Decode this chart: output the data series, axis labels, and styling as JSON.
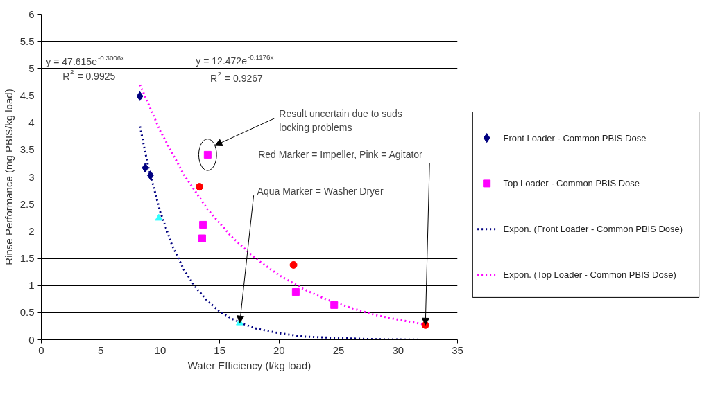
{
  "chart_data": {
    "type": "scatter",
    "xlabel": "Water Efficiency (l/kg load)",
    "ylabel": "Rinse Performance (mg PBIS/kg load)",
    "xlim": [
      0,
      35
    ],
    "xticks": [
      0,
      5,
      10,
      15,
      20,
      25,
      30,
      35
    ],
    "ylim": [
      0,
      6
    ],
    "yticks": [
      0,
      0.5,
      1,
      1.5,
      2,
      2.5,
      3,
      3.5,
      4,
      4.5,
      5,
      5.5,
      6
    ],
    "grid": "y",
    "legend": "right",
    "series": [
      {
        "name": "Front Loader - Common PBIS Dose",
        "marker": "diamond",
        "color": "#000080",
        "x": [
          8.29,
          8.74,
          9.18
        ],
        "values": [
          4.49,
          3.17,
          3.03
        ]
      },
      {
        "name": "Top Loader - Common PBIS Dose",
        "marker": "square",
        "color": "#ff00ff",
        "x": [
          13.99,
          13.6,
          13.53,
          21.4,
          24.63
        ],
        "values": [
          3.41,
          2.12,
          1.87,
          0.88,
          0.64
        ]
      },
      {
        "name": "Expon. (Front Loader - Common PBIS Dose)",
        "type": "line",
        "line_style": "dotted",
        "color": "#000080",
        "x": [
          8.3,
          9,
          10,
          11,
          12,
          13,
          14,
          15,
          16,
          17,
          18,
          20,
          22,
          25,
          28,
          32.3
        ],
        "values": [
          3.93,
          3.18,
          2.36,
          1.74,
          1.29,
          0.96,
          0.71,
          0.52,
          0.39,
          0.29,
          0.21,
          0.12,
          0.06,
          0.03,
          0.01,
          0
        ]
      },
      {
        "name": "Expon. (Top Loader - Common PBIS Dose)",
        "type": "line",
        "line_style": "dotted",
        "color": "#ff00ff",
        "x": [
          8.3,
          10,
          12,
          14,
          16,
          18,
          20,
          22,
          24,
          26,
          28,
          30,
          32.3
        ],
        "values": [
          4.7,
          3.85,
          3.04,
          2.4,
          1.9,
          1.5,
          1.19,
          0.94,
          0.74,
          0.59,
          0.46,
          0.37,
          0.28
        ]
      },
      {
        "marker": "circle",
        "color": "#ff0000",
        "x": [
          13.3,
          21.21,
          32.3
        ],
        "values": [
          2.82,
          1.38,
          0.27
        ]
      },
      {
        "marker": "triangle",
        "color": "#33ffff",
        "x": [
          9.88,
          16.69
        ],
        "values": [
          2.24,
          0.31
        ]
      }
    ],
    "annotations": [
      "y = 47.615e$^{-0.3006x}$",
      "R$^{2}$ = 0.9925",
      "y = 12.472e$^{-0.1176x}$",
      "R$^{2}$ = 0.9267",
      "Result uncertain due to suds locking problems",
      {
        "text": "Red Marker = Impeller, Pink = Agitator",
        "x": 32.3,
        "y": 0.27
      },
      {
        "text": "Aqua Marker = Washer Dryer",
        "x": 16.69,
        "y": 0.31
      }
    ]
  }
}
